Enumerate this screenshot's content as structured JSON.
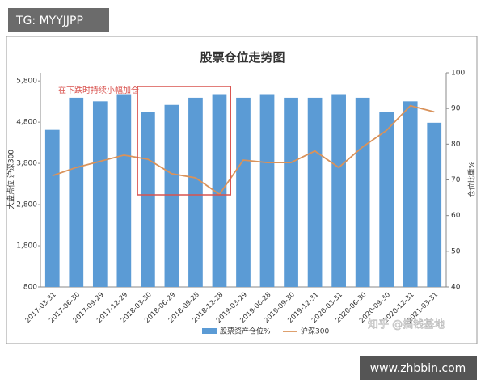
{
  "overlays": {
    "top_left": "TG: MYYJJPP",
    "bottom_right": "www.zhbbin.com",
    "watermark": "知乎 @搞钱基地"
  },
  "chart_data": {
    "type": "bar",
    "title": "股票仓位走势图",
    "y_label": "大盘点位 沪深300",
    "y2_label": "仓位比重%",
    "categories": [
      "2017-03-31",
      "2017-06-30",
      "2017-09-29",
      "2017-12-29",
      "2018-03-30",
      "2018-06-29",
      "2018-09-28",
      "2018-12-28",
      "2019-03-29",
      "2019-06-28",
      "2019-09-30",
      "2019-12-31",
      "2020-03-31",
      "2020-06-30",
      "2020-09-30",
      "2020-12-31",
      "2021-03-31"
    ],
    "series": [
      {
        "name": "股票资产仓位%",
        "type": "bar",
        "axis": "y2",
        "color": "#5b9bd5",
        "values": [
          84,
          93,
          92,
          94,
          89,
          91,
          93,
          94,
          93,
          94,
          93,
          93,
          94,
          93,
          89,
          92,
          86
        ]
      },
      {
        "name": "沪深300",
        "type": "line",
        "color": "#d9925a",
        "values": [
          3500,
          3700,
          3850,
          4000,
          3900,
          3550,
          3450,
          3050,
          3880,
          3820,
          3820,
          4100,
          3700,
          4200,
          4600,
          5200,
          5050
        ]
      }
    ],
    "ylim": [
      800,
      6000
    ],
    "yticks": [
      800,
      {
        "value": 1800,
        "label": "1,800"
      },
      {
        "value": 2800,
        "label": "2,800"
      },
      {
        "value": 3800,
        "label": "3,800"
      },
      {
        "value": 4800,
        "label": "4,800"
      },
      {
        "value": 5800,
        "label": "5,800"
      }
    ],
    "y2lim": [
      40,
      100
    ],
    "y2ticks": [
      40,
      50,
      60,
      70,
      80,
      90,
      100
    ],
    "annotations": [
      {
        "text": "在下跌时持续小幅加仓",
        "color": "#d9534f"
      }
    ],
    "legend": "bottom"
  }
}
